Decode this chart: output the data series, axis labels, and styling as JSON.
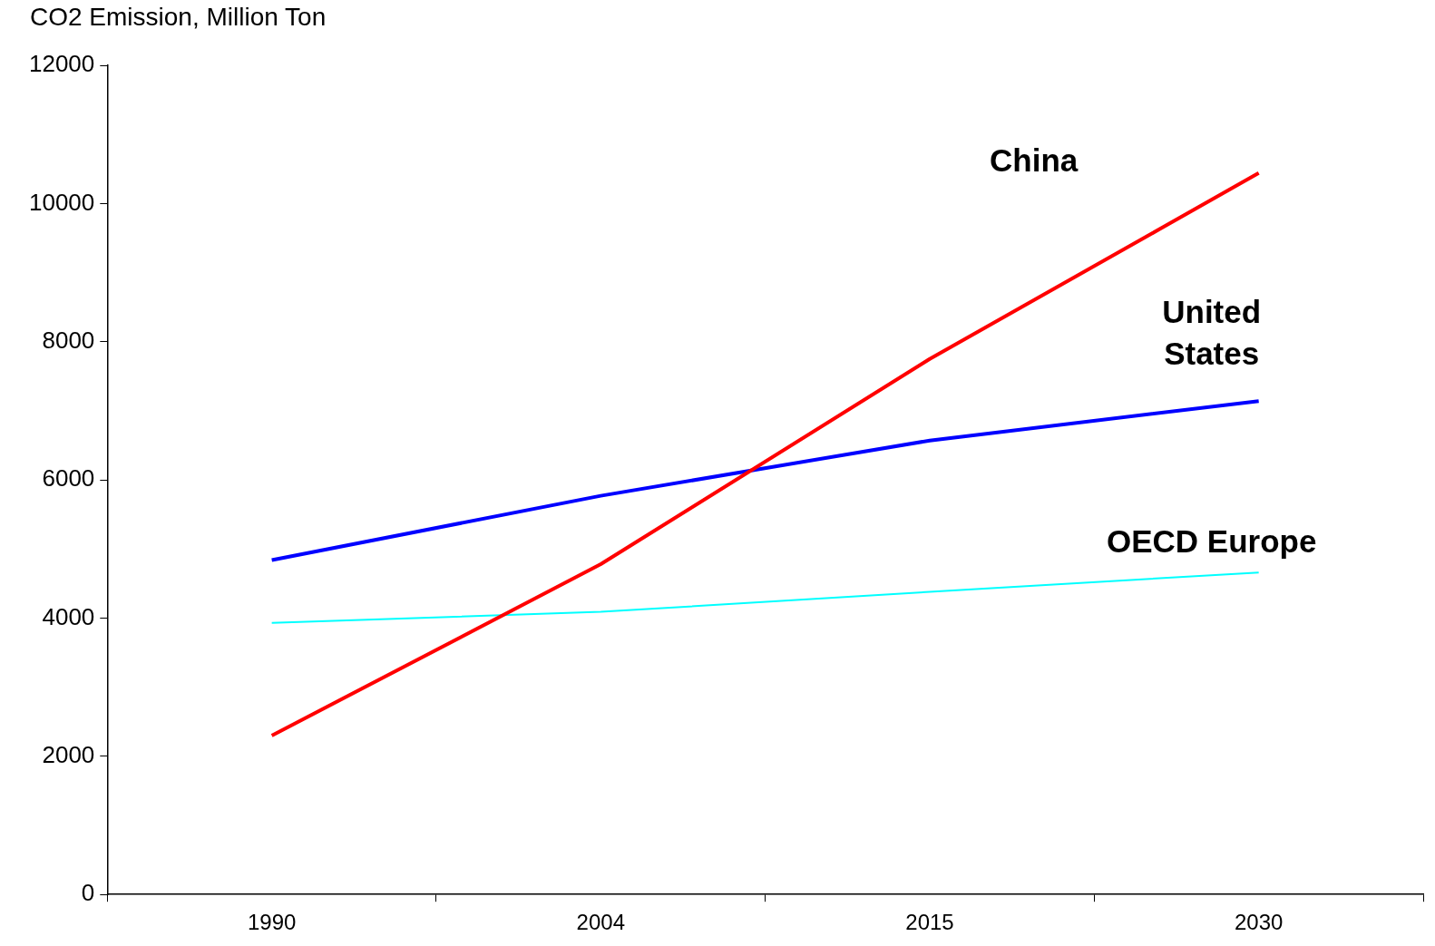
{
  "chart_data": {
    "type": "line",
    "ylabel": "CO2 Emission, Million Ton",
    "categories": [
      "1990",
      "2004",
      "2015",
      "2030"
    ],
    "series": [
      {
        "name": "China",
        "color": "#ff0000",
        "values": [
          2300,
          4780,
          7750,
          10440
        ]
      },
      {
        "name": "United States",
        "color": "#0000ff",
        "values": [
          4840,
          5770,
          6570,
          7140
        ]
      },
      {
        "name": "OECD Europe",
        "color": "#00ffff",
        "values": [
          3930,
          4090,
          4380,
          4660
        ]
      }
    ],
    "ylim": [
      0,
      12000
    ],
    "yticks": [
      0,
      2000,
      4000,
      6000,
      8000,
      10000,
      12000
    ],
    "grid": false,
    "legend": false,
    "marker": "none",
    "line_style": "solid"
  }
}
